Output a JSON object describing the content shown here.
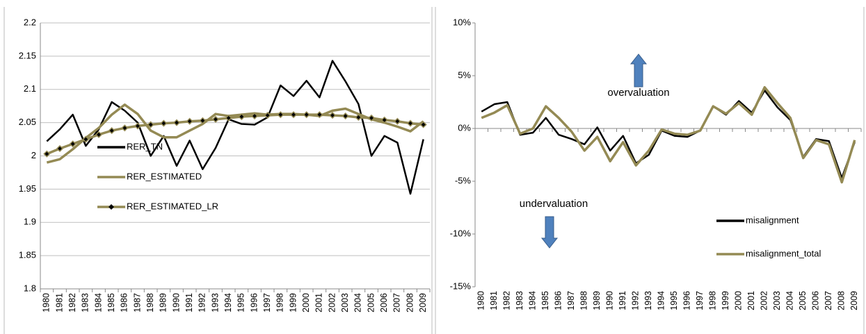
{
  "chart_data": [
    {
      "type": "line",
      "categories": [
        "1980",
        "1981",
        "1982",
        "1983",
        "1984",
        "1985",
        "1986",
        "1987",
        "1988",
        "1989",
        "1990",
        "1991",
        "1992",
        "1993",
        "1994",
        "1995",
        "1996",
        "1997",
        "1998",
        "1999",
        "2000",
        "2001",
        "2002",
        "2003",
        "2004",
        "2005",
        "2006",
        "2007",
        "2008",
        "2009"
      ],
      "series": [
        {
          "name": "RER_TN",
          "color": "#000000",
          "values": [
            2.022,
            2.04,
            2.062,
            2.015,
            2.04,
            2.081,
            2.068,
            2.05,
            2.0,
            2.03,
            1.985,
            2.023,
            1.98,
            2.012,
            2.055,
            2.048,
            2.047,
            2.058,
            2.106,
            2.09,
            2.113,
            2.088,
            2.143,
            2.112,
            2.078,
            2.0,
            2.03,
            2.02,
            1.943,
            2.025
          ]
        },
        {
          "name": "RER_ESTIMATED",
          "color": "#948a54",
          "values": [
            1.99,
            1.995,
            2.01,
            2.027,
            2.042,
            2.062,
            2.077,
            2.063,
            2.038,
            2.028,
            2.028,
            2.038,
            2.048,
            2.063,
            2.06,
            2.062,
            2.064,
            2.062,
            2.063,
            2.063,
            2.062,
            2.06,
            2.068,
            2.071,
            2.063,
            2.055,
            2.05,
            2.044,
            2.037,
            2.052
          ]
        },
        {
          "name": "RER_ESTIMATED_LR",
          "color": "#948a54",
          "marker": "diamond",
          "values": [
            2.003,
            2.011,
            2.018,
            2.025,
            2.032,
            2.038,
            2.042,
            2.045,
            2.047,
            2.049,
            2.05,
            2.052,
            2.053,
            2.055,
            2.057,
            2.059,
            2.06,
            2.061,
            2.062,
            2.062,
            2.062,
            2.062,
            2.061,
            2.06,
            2.058,
            2.057,
            2.054,
            2.052,
            2.049,
            2.047
          ]
        }
      ],
      "ylim": [
        1.8,
        2.2
      ],
      "yticks": [
        1.8,
        1.85,
        1.9,
        1.95,
        2,
        2.05,
        2.1,
        2.15,
        2.2
      ],
      "grid": true,
      "legend": "center-left"
    },
    {
      "type": "line",
      "categories": [
        "1980",
        "1981",
        "1982",
        "1983",
        "1984",
        "1985",
        "1986",
        "1987",
        "1988",
        "1989",
        "1990",
        "1991",
        "1992",
        "1993",
        "1994",
        "1995",
        "1996",
        "1997",
        "1998",
        "1999",
        "2000",
        "2001",
        "2002",
        "2003",
        "2004",
        "2005",
        "2006",
        "2007",
        "2008",
        "2009"
      ],
      "series": [
        {
          "name": "misalignment",
          "color": "#000000",
          "values": [
            1.6,
            2.3,
            2.5,
            -0.6,
            -0.4,
            1.0,
            -0.6,
            -1.0,
            -1.5,
            0.1,
            -2.1,
            -0.7,
            -3.3,
            -2.5,
            -0.2,
            -0.7,
            -0.8,
            -0.2,
            2.1,
            1.3,
            2.6,
            1.5,
            3.6,
            2.0,
            0.8,
            -2.7,
            -1.0,
            -1.2,
            -4.7,
            -1.3
          ]
        },
        {
          "name": "misalignment_total",
          "color": "#948a54",
          "values": [
            1.0,
            1.5,
            2.2,
            -0.5,
            0.0,
            2.1,
            1.0,
            -0.3,
            -2.1,
            -0.8,
            -3.1,
            -1.3,
            -3.5,
            -2.1,
            -0.1,
            -0.5,
            -0.6,
            -0.2,
            2.1,
            1.4,
            2.4,
            1.3,
            3.9,
            2.4,
            1.0,
            -2.8,
            -1.1,
            -1.5,
            -5.1,
            -1.1
          ]
        }
      ],
      "ylim": [
        -15,
        10
      ],
      "yticks": [
        {
          "value": -15,
          "label": "-15%"
        },
        {
          "value": -10,
          "label": "-10%"
        },
        {
          "value": -5,
          "label": "-5%"
        },
        {
          "value": 0,
          "label": "0%"
        },
        {
          "value": 5,
          "label": "5%"
        },
        {
          "value": 10,
          "label": "10%"
        }
      ],
      "grid": false,
      "legend": "lower-right",
      "annotations": [
        "overvaluation",
        "undervaluation"
      ]
    }
  ]
}
